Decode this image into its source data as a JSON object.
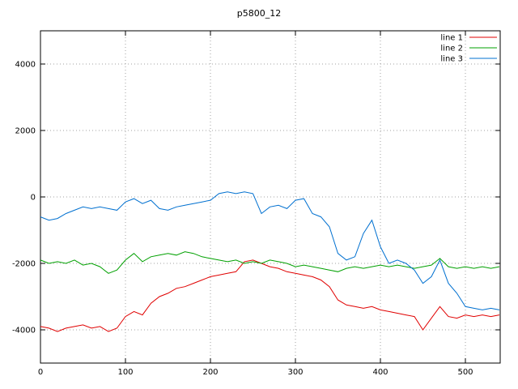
{
  "chart_data": {
    "type": "line",
    "title": "p5800_12",
    "xlabel": "",
    "ylabel": "",
    "xlim": [
      0,
      541
    ],
    "ylim": [
      -5000,
      5000
    ],
    "xticks": [
      0,
      100,
      200,
      300,
      400,
      500
    ],
    "yticks": [
      -4000,
      -2000,
      0,
      2000,
      4000
    ],
    "grid": true,
    "legend_position": "top-right",
    "x": [
      0,
      10,
      20,
      30,
      40,
      50,
      60,
      70,
      80,
      90,
      100,
      110,
      120,
      130,
      140,
      150,
      160,
      170,
      180,
      190,
      200,
      210,
      220,
      230,
      240,
      250,
      260,
      270,
      280,
      290,
      300,
      310,
      320,
      330,
      340,
      350,
      360,
      370,
      380,
      390,
      400,
      410,
      420,
      430,
      440,
      450,
      460,
      470,
      480,
      490,
      500,
      510,
      520,
      530,
      540
    ],
    "series": [
      {
        "name": "line 1",
        "color": "#e00000",
        "values": [
          -3900,
          -3950,
          -4050,
          -3950,
          -3900,
          -3850,
          -3950,
          -3900,
          -4050,
          -3950,
          -3600,
          -3450,
          -3550,
          -3200,
          -3000,
          -2900,
          -2750,
          -2700,
          -2600,
          -2500,
          -2400,
          -2350,
          -2300,
          -2250,
          -1950,
          -1900,
          -2000,
          -2100,
          -2150,
          -2250,
          -2300,
          -2350,
          -2400,
          -2500,
          -2700,
          -3100,
          -3250,
          -3300,
          -3350,
          -3300,
          -3400,
          -3450,
          -3500,
          -3550,
          -3600,
          -4000,
          -3650,
          -3300,
          -3600,
          -3650,
          -3550,
          -3600,
          -3550,
          -3600,
          -3550
        ]
      },
      {
        "name": "line 2",
        "color": "#00a000",
        "values": [
          -1900,
          -2000,
          -1950,
          -2000,
          -1900,
          -2050,
          -2000,
          -2100,
          -2300,
          -2200,
          -1900,
          -1700,
          -1950,
          -1800,
          -1750,
          -1700,
          -1750,
          -1650,
          -1700,
          -1800,
          -1850,
          -1900,
          -1950,
          -1900,
          -2000,
          -1950,
          -2000,
          -1900,
          -1950,
          -2000,
          -2100,
          -2050,
          -2100,
          -2150,
          -2200,
          -2250,
          -2150,
          -2100,
          -2150,
          -2100,
          -2050,
          -2100,
          -2050,
          -2100,
          -2150,
          -2100,
          -2050,
          -1850,
          -2100,
          -2150,
          -2100,
          -2150,
          -2100,
          -2150,
          -2100
        ]
      },
      {
        "name": "line 3",
        "color": "#0070d0",
        "values": [
          -600,
          -700,
          -650,
          -500,
          -400,
          -300,
          -350,
          -300,
          -350,
          -400,
          -150,
          -50,
          -200,
          -100,
          -350,
          -400,
          -300,
          -250,
          -200,
          -150,
          -100,
          100,
          150,
          100,
          150,
          100,
          -500,
          -300,
          -250,
          -350,
          -100,
          -50,
          -500,
          -600,
          -900,
          -1700,
          -1900,
          -1800,
          -1100,
          -700,
          -1500,
          -2000,
          -1900,
          -2000,
          -2200,
          -2600,
          -2400,
          -1900,
          -2600,
          -2900,
          -3300,
          -3350,
          -3400,
          -3350,
          -3400
        ]
      }
    ]
  },
  "style": {
    "grid_color": "#a0a0a0",
    "border_color": "#000000",
    "background": "#ffffff"
  }
}
